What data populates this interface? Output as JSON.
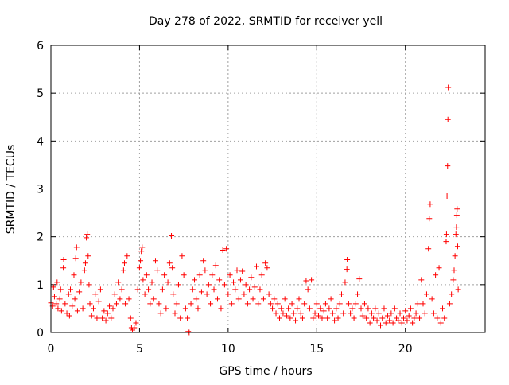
{
  "chart_data": {
    "type": "scatter",
    "title": "Day 278 of 2022, SRMTID for receiver yell",
    "xlabel": "GPS time / hours",
    "ylabel": "SRMTID / TECUs",
    "xlim": [
      0,
      24.5
    ],
    "ylim": [
      0,
      6
    ],
    "x_ticks": [
      0,
      5,
      10,
      15,
      20
    ],
    "y_ticks": [
      0,
      1,
      2,
      3,
      4,
      5,
      6
    ],
    "grid": true,
    "marker": "+",
    "marker_color": "#ff0000",
    "series": [
      {
        "name": "SRMTID",
        "points": [
          [
            0.0,
            0.62
          ],
          [
            0.1,
            0.55
          ],
          [
            0.15,
            0.95
          ],
          [
            0.2,
            0.75
          ],
          [
            0.3,
            0.6
          ],
          [
            0.35,
            1.05
          ],
          [
            0.4,
            0.5
          ],
          [
            0.5,
            0.7
          ],
          [
            0.55,
            0.9
          ],
          [
            0.6,
            0.45
          ],
          [
            0.7,
            1.35
          ],
          [
            0.72,
            1.52
          ],
          [
            0.8,
            0.6
          ],
          [
            0.9,
            0.4
          ],
          [
            1.0,
            0.8
          ],
          [
            1.05,
            0.35
          ],
          [
            1.1,
            0.9
          ],
          [
            1.2,
            0.55
          ],
          [
            1.3,
            1.2
          ],
          [
            1.35,
            0.7
          ],
          [
            1.4,
            1.55
          ],
          [
            1.45,
            1.78
          ],
          [
            1.5,
            0.45
          ],
          [
            1.6,
            0.85
          ],
          [
            1.7,
            1.05
          ],
          [
            1.8,
            0.5
          ],
          [
            1.9,
            1.3
          ],
          [
            1.95,
            1.45
          ],
          [
            2.0,
            1.98
          ],
          [
            2.05,
            2.05
          ],
          [
            2.1,
            1.6
          ],
          [
            2.15,
            1.0
          ],
          [
            2.2,
            0.6
          ],
          [
            2.3,
            0.35
          ],
          [
            2.4,
            0.5
          ],
          [
            2.5,
            0.8
          ],
          [
            2.6,
            0.3
          ],
          [
            2.7,
            0.65
          ],
          [
            2.8,
            0.9
          ],
          [
            2.9,
            0.3
          ],
          [
            3.0,
            0.45
          ],
          [
            3.1,
            0.25
          ],
          [
            3.2,
            0.4
          ],
          [
            3.3,
            0.55
          ],
          [
            3.4,
            0.3
          ],
          [
            3.5,
            0.5
          ],
          [
            3.6,
            0.8
          ],
          [
            3.7,
            0.6
          ],
          [
            3.8,
            1.05
          ],
          [
            3.9,
            0.7
          ],
          [
            4.0,
            0.9
          ],
          [
            4.1,
            1.3
          ],
          [
            4.15,
            1.45
          ],
          [
            4.2,
            0.6
          ],
          [
            4.3,
            1.6
          ],
          [
            4.4,
            0.7
          ],
          [
            4.5,
            0.3
          ],
          [
            4.55,
            0.1
          ],
          [
            4.6,
            0.05
          ],
          [
            4.7,
            0.1
          ],
          [
            4.8,
            0.2
          ],
          [
            4.9,
            0.9
          ],
          [
            5.0,
            1.35
          ],
          [
            5.05,
            1.5
          ],
          [
            5.1,
            1.7
          ],
          [
            5.15,
            1.78
          ],
          [
            5.2,
            1.1
          ],
          [
            5.3,
            0.8
          ],
          [
            5.4,
            1.2
          ],
          [
            5.5,
            0.9
          ],
          [
            5.6,
            0.6
          ],
          [
            5.7,
            1.05
          ],
          [
            5.8,
            0.7
          ],
          [
            5.9,
            1.5
          ],
          [
            6.0,
            1.3
          ],
          [
            6.1,
            0.6
          ],
          [
            6.2,
            0.4
          ],
          [
            6.3,
            0.9
          ],
          [
            6.4,
            1.2
          ],
          [
            6.5,
            0.5
          ],
          [
            6.6,
            1.05
          ],
          [
            6.7,
            1.45
          ],
          [
            6.8,
            2.02
          ],
          [
            6.85,
            1.35
          ],
          [
            6.9,
            0.8
          ],
          [
            7.0,
            0.4
          ],
          [
            7.1,
            0.6
          ],
          [
            7.2,
            1.0
          ],
          [
            7.3,
            0.3
          ],
          [
            7.4,
            1.6
          ],
          [
            7.5,
            1.2
          ],
          [
            7.6,
            0.5
          ],
          [
            7.7,
            0.3
          ],
          [
            7.75,
            0.02
          ],
          [
            7.8,
            0.0
          ],
          [
            7.9,
            0.6
          ],
          [
            8.0,
            0.9
          ],
          [
            8.1,
            1.1
          ],
          [
            8.2,
            0.7
          ],
          [
            8.3,
            0.5
          ],
          [
            8.4,
            1.2
          ],
          [
            8.5,
            0.85
          ],
          [
            8.6,
            1.5
          ],
          [
            8.7,
            1.3
          ],
          [
            8.8,
            0.8
          ],
          [
            8.9,
            1.0
          ],
          [
            9.0,
            0.6
          ],
          [
            9.1,
            1.2
          ],
          [
            9.2,
            0.9
          ],
          [
            9.3,
            1.4
          ],
          [
            9.4,
            0.7
          ],
          [
            9.5,
            1.1
          ],
          [
            9.6,
            0.5
          ],
          [
            9.7,
            1.72
          ],
          [
            9.8,
            1.0
          ],
          [
            9.9,
            1.75
          ],
          [
            10.0,
            0.8
          ],
          [
            10.1,
            1.2
          ],
          [
            10.2,
            0.6
          ],
          [
            10.3,
            1.05
          ],
          [
            10.4,
            0.9
          ],
          [
            10.5,
            1.3
          ],
          [
            10.6,
            0.7
          ],
          [
            10.7,
            1.1
          ],
          [
            10.8,
            1.28
          ],
          [
            10.9,
            0.8
          ],
          [
            11.0,
            1.0
          ],
          [
            11.1,
            0.6
          ],
          [
            11.2,
            0.9
          ],
          [
            11.3,
            1.15
          ],
          [
            11.4,
            0.7
          ],
          [
            11.5,
            0.95
          ],
          [
            11.6,
            1.38
          ],
          [
            11.7,
            0.6
          ],
          [
            11.8,
            0.9
          ],
          [
            11.9,
            1.2
          ],
          [
            12.0,
            0.7
          ],
          [
            12.1,
            1.45
          ],
          [
            12.2,
            1.35
          ],
          [
            12.3,
            0.8
          ],
          [
            12.4,
            0.6
          ],
          [
            12.5,
            0.5
          ],
          [
            12.6,
            0.7
          ],
          [
            12.7,
            0.4
          ],
          [
            12.8,
            0.6
          ],
          [
            12.9,
            0.3
          ],
          [
            13.0,
            0.5
          ],
          [
            13.1,
            0.4
          ],
          [
            13.2,
            0.7
          ],
          [
            13.3,
            0.35
          ],
          [
            13.4,
            0.5
          ],
          [
            13.5,
            0.3
          ],
          [
            13.6,
            0.6
          ],
          [
            13.7,
            0.4
          ],
          [
            13.8,
            0.25
          ],
          [
            13.9,
            0.5
          ],
          [
            14.0,
            0.7
          ],
          [
            14.1,
            0.4
          ],
          [
            14.2,
            0.3
          ],
          [
            14.3,
            0.6
          ],
          [
            14.4,
            1.08
          ],
          [
            14.5,
            0.9
          ],
          [
            14.6,
            0.5
          ],
          [
            14.7,
            1.1
          ],
          [
            14.8,
            0.3
          ],
          [
            14.9,
            0.4
          ],
          [
            15.0,
            0.6
          ],
          [
            15.1,
            0.35
          ],
          [
            15.2,
            0.5
          ],
          [
            15.3,
            0.3
          ],
          [
            15.4,
            0.45
          ],
          [
            15.5,
            0.6
          ],
          [
            15.6,
            0.3
          ],
          [
            15.7,
            0.5
          ],
          [
            15.8,
            0.7
          ],
          [
            15.9,
            0.4
          ],
          [
            16.0,
            0.25
          ],
          [
            16.1,
            0.5
          ],
          [
            16.2,
            0.3
          ],
          [
            16.3,
            0.6
          ],
          [
            16.4,
            0.8
          ],
          [
            16.5,
            0.4
          ],
          [
            16.6,
            1.05
          ],
          [
            16.7,
            1.32
          ],
          [
            16.72,
            1.52
          ],
          [
            16.8,
            0.6
          ],
          [
            16.9,
            0.4
          ],
          [
            17.0,
            0.5
          ],
          [
            17.1,
            0.3
          ],
          [
            17.2,
            0.6
          ],
          [
            17.3,
            0.8
          ],
          [
            17.4,
            1.12
          ],
          [
            17.5,
            0.5
          ],
          [
            17.6,
            0.35
          ],
          [
            17.7,
            0.6
          ],
          [
            17.8,
            0.3
          ],
          [
            17.9,
            0.5
          ],
          [
            18.0,
            0.2
          ],
          [
            18.1,
            0.4
          ],
          [
            18.2,
            0.3
          ],
          [
            18.3,
            0.5
          ],
          [
            18.4,
            0.25
          ],
          [
            18.5,
            0.4
          ],
          [
            18.6,
            0.15
          ],
          [
            18.7,
            0.3
          ],
          [
            18.8,
            0.5
          ],
          [
            18.9,
            0.2
          ],
          [
            19.0,
            0.35
          ],
          [
            19.1,
            0.25
          ],
          [
            19.2,
            0.4
          ],
          [
            19.3,
            0.2
          ],
          [
            19.4,
            0.5
          ],
          [
            19.5,
            0.3
          ],
          [
            19.6,
            0.25
          ],
          [
            19.7,
            0.4
          ],
          [
            19.8,
            0.2
          ],
          [
            19.9,
            0.3
          ],
          [
            20.0,
            0.45
          ],
          [
            20.1,
            0.25
          ],
          [
            20.2,
            0.35
          ],
          [
            20.3,
            0.5
          ],
          [
            20.4,
            0.2
          ],
          [
            20.5,
            0.3
          ],
          [
            20.6,
            0.4
          ],
          [
            20.7,
            0.6
          ],
          [
            20.8,
            0.3
          ],
          [
            20.9,
            1.1
          ],
          [
            21.0,
            0.6
          ],
          [
            21.1,
            0.4
          ],
          [
            21.2,
            0.8
          ],
          [
            21.3,
            1.75
          ],
          [
            21.35,
            2.38
          ],
          [
            21.4,
            2.68
          ],
          [
            21.5,
            0.7
          ],
          [
            21.6,
            0.4
          ],
          [
            21.7,
            1.2
          ],
          [
            21.8,
            0.3
          ],
          [
            21.9,
            1.35
          ],
          [
            22.0,
            0.2
          ],
          [
            22.1,
            0.5
          ],
          [
            22.2,
            0.3
          ],
          [
            22.3,
            1.9
          ],
          [
            22.32,
            2.05
          ],
          [
            22.35,
            2.85
          ],
          [
            22.38,
            3.48
          ],
          [
            22.4,
            4.45
          ],
          [
            22.42,
            5.12
          ],
          [
            22.5,
            0.6
          ],
          [
            22.6,
            0.8
          ],
          [
            22.7,
            1.1
          ],
          [
            22.75,
            1.3
          ],
          [
            22.8,
            1.6
          ],
          [
            22.85,
            2.05
          ],
          [
            22.88,
            2.2
          ],
          [
            22.9,
            2.45
          ],
          [
            22.92,
            2.58
          ],
          [
            22.95,
            1.8
          ],
          [
            22.98,
            0.9
          ]
        ]
      }
    ]
  }
}
